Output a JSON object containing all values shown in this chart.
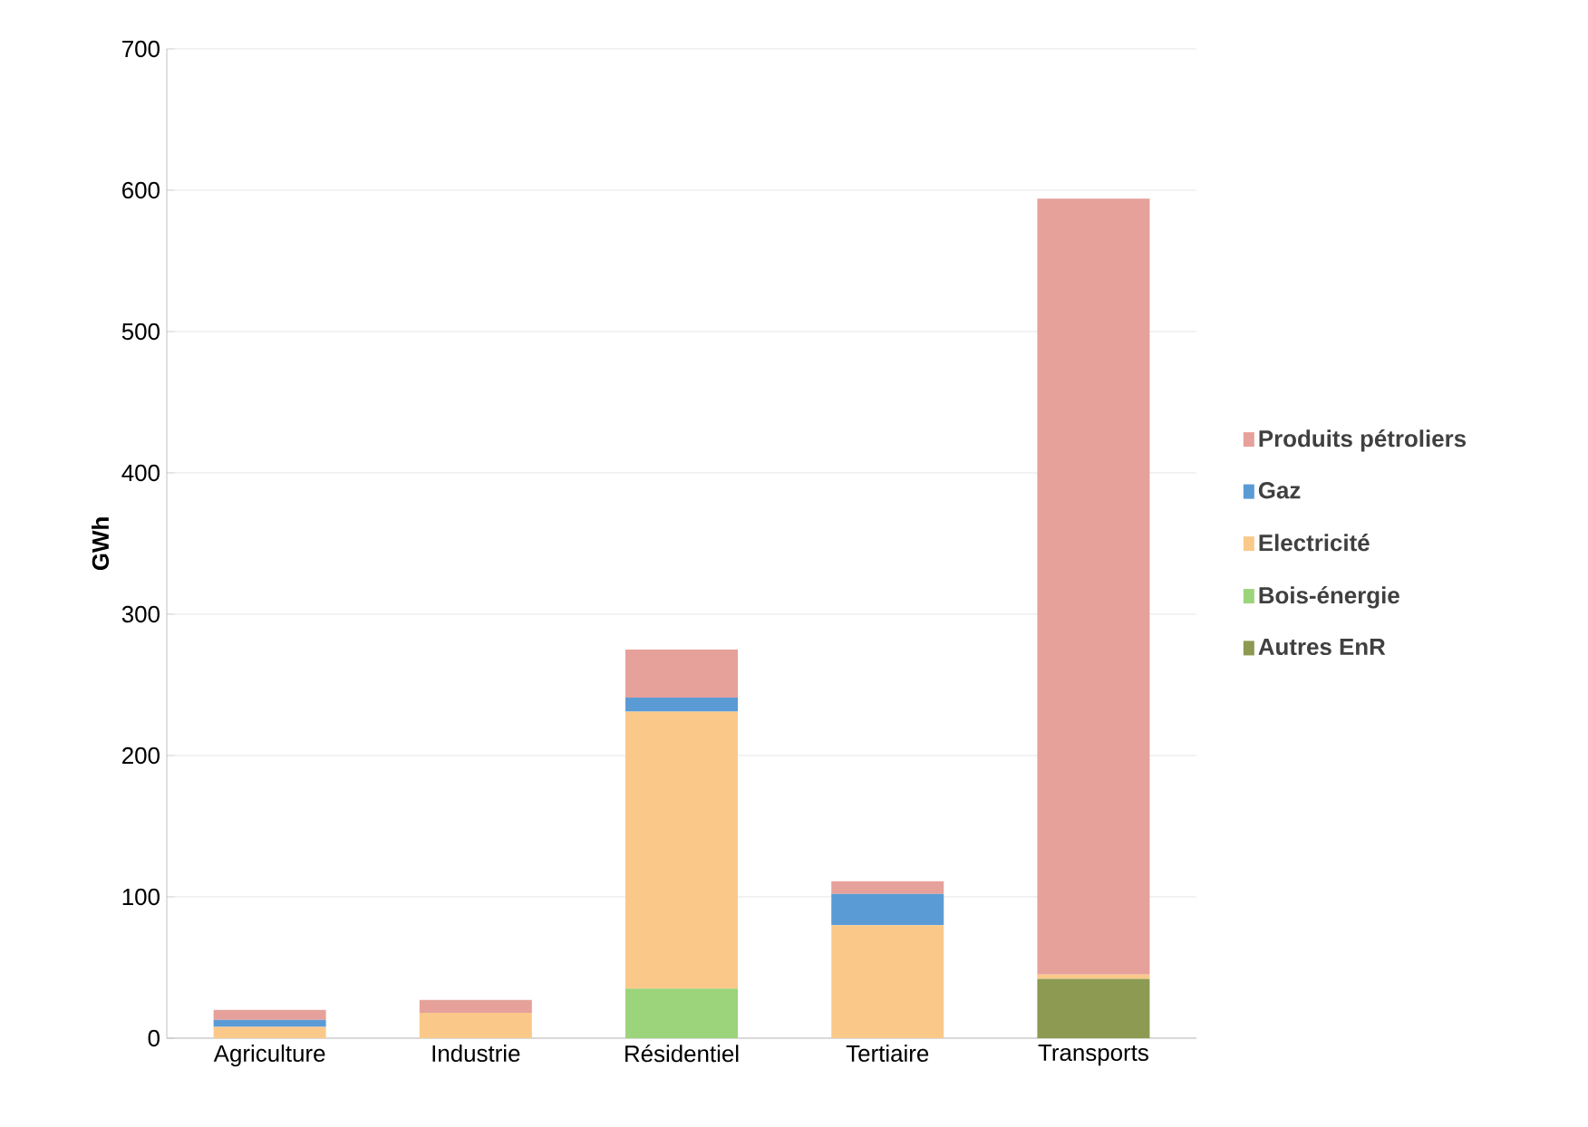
{
  "chart_data": {
    "type": "bar",
    "stacked": true,
    "ylabel": "GWh",
    "categories": [
      "Agriculture",
      "Industrie",
      "Résidentiel",
      "Tertiaire",
      "Transports"
    ],
    "series": [
      {
        "name": "Autres EnR",
        "color": "#8c9a52",
        "values": [
          0,
          0,
          0,
          0,
          42
        ]
      },
      {
        "name": "Bois-énergie",
        "color": "#9bd47a",
        "values": [
          0,
          0,
          35,
          0,
          0
        ]
      },
      {
        "name": "Electricité",
        "color": "#fac98a",
        "values": [
          8,
          18,
          196,
          80,
          3
        ]
      },
      {
        "name": "Gaz",
        "color": "#5b9bd5",
        "values": [
          5,
          0,
          10,
          22,
          0
        ]
      },
      {
        "name": "Produits pétroliers",
        "color": "#e6a19b",
        "values": [
          7,
          9,
          34,
          9,
          549
        ]
      }
    ],
    "ylim": [
      0,
      700
    ],
    "yticks": [
      0,
      100,
      200,
      300,
      400,
      500,
      600,
      700
    ],
    "grid": "y",
    "legend": "right"
  }
}
